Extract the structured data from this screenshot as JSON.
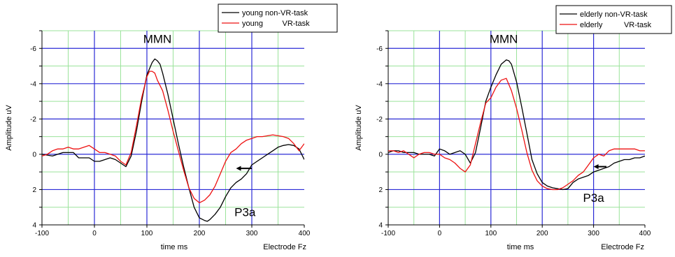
{
  "chart_data": [
    {
      "type": "line",
      "xlabel": "time ms",
      "ylabel": "Amplitude uV",
      "corner_label": "Electrode Fz",
      "xlim": [
        -100,
        400
      ],
      "ylim": [
        4,
        -7
      ],
      "y_inverted": true,
      "x_ticks": [
        -100,
        0,
        100,
        200,
        300,
        400
      ],
      "y_ticks": [
        -6,
        -4,
        -2,
        0,
        2,
        4
      ],
      "grid": true,
      "major_grid_color": "#2b2bd6",
      "minor_grid_color": "#9be39b",
      "legend_position": "top-right",
      "annotations": [
        {
          "text": "MMN",
          "x": 120,
          "y": -6.3
        },
        {
          "text": "P3a",
          "x": 287,
          "y": 3.5
        }
      ],
      "arrow": {
        "from": [
          300,
          0.8
        ],
        "to": [
          270,
          0.8
        ]
      },
      "series": [
        {
          "name": "young non-VR-task",
          "color": "#000000",
          "x": [
            -100,
            -80,
            -60,
            -50,
            -40,
            -30,
            -20,
            -10,
            0,
            10,
            20,
            30,
            40,
            50,
            60,
            70,
            80,
            90,
            100,
            110,
            115,
            120,
            125,
            130,
            140,
            150,
            160,
            170,
            180,
            190,
            200,
            210,
            215,
            220,
            230,
            240,
            250,
            260,
            270,
            280,
            290,
            300,
            310,
            320,
            330,
            340,
            350,
            360,
            370,
            380,
            390,
            400
          ],
          "y": [
            0,
            0.1,
            -0.1,
            -0.1,
            -0.1,
            0.2,
            0.2,
            0.2,
            0.4,
            0.4,
            0.3,
            0.2,
            0.3,
            0.5,
            0.7,
            0.1,
            -1.3,
            -3.0,
            -4.5,
            -5.2,
            -5.4,
            -5.3,
            -5.1,
            -4.6,
            -3.4,
            -2.0,
            -0.6,
            0.7,
            1.9,
            3.0,
            3.6,
            3.75,
            3.8,
            3.7,
            3.4,
            3.0,
            2.4,
            1.9,
            1.6,
            1.4,
            1.1,
            0.6,
            0.4,
            0.2,
            0,
            -0.2,
            -0.4,
            -0.5,
            -0.55,
            -0.5,
            -0.3,
            0.3
          ]
        },
        {
          "name": "young         VR-task",
          "color": "#ee1111",
          "x": [
            -100,
            -90,
            -80,
            -70,
            -60,
            -50,
            -40,
            -30,
            -20,
            -10,
            0,
            10,
            20,
            30,
            40,
            50,
            60,
            70,
            80,
            90,
            100,
            105,
            110,
            115,
            120,
            130,
            140,
            150,
            160,
            170,
            180,
            190,
            200,
            210,
            220,
            230,
            240,
            250,
            260,
            270,
            280,
            290,
            300,
            310,
            320,
            330,
            340,
            350,
            360,
            370,
            380,
            390,
            400
          ],
          "y": [
            0.1,
            0,
            -0.2,
            -0.3,
            -0.3,
            -0.4,
            -0.3,
            -0.3,
            -0.4,
            -0.5,
            -0.3,
            -0.1,
            -0.1,
            0,
            0.1,
            0.4,
            0.6,
            -0.1,
            -1.6,
            -3.2,
            -4.4,
            -4.7,
            -4.7,
            -4.6,
            -4.2,
            -3.6,
            -2.5,
            -1.3,
            -0.2,
            0.9,
            1.9,
            2.5,
            2.75,
            2.6,
            2.3,
            1.8,
            1.1,
            0.4,
            -0.1,
            -0.3,
            -0.6,
            -0.8,
            -0.9,
            -1.0,
            -1.0,
            -1.05,
            -1.1,
            -1.05,
            -1.0,
            -0.9,
            -0.6,
            -0.2,
            -0.6
          ]
        }
      ]
    },
    {
      "type": "line",
      "xlabel": "time ms",
      "ylabel": "Amplitude uV",
      "corner_label": "Electrode Fz",
      "xlim": [
        -100,
        400
      ],
      "ylim": [
        4,
        -7
      ],
      "y_inverted": true,
      "x_ticks": [
        -100,
        0,
        100,
        200,
        300,
        400
      ],
      "y_ticks": [
        -6,
        -4,
        -2,
        0,
        2,
        4
      ],
      "grid": true,
      "major_grid_color": "#2b2bd6",
      "minor_grid_color": "#9be39b",
      "legend_position": "top-right",
      "annotations": [
        {
          "text": "MMN",
          "x": 125,
          "y": -6.3
        },
        {
          "text": "P3a",
          "x": 300,
          "y": 2.7
        }
      ],
      "arrow": {
        "from": [
          325,
          0.7
        ],
        "to": [
          300,
          0.7
        ]
      },
      "series": [
        {
          "name": "elderly non-VR-task",
          "color": "#000000",
          "x": [
            -100,
            -90,
            -80,
            -70,
            -60,
            -50,
            -40,
            -30,
            -20,
            -10,
            0,
            10,
            20,
            30,
            40,
            50,
            60,
            70,
            80,
            90,
            100,
            110,
            120,
            130,
            135,
            140,
            150,
            160,
            170,
            180,
            190,
            200,
            210,
            220,
            230,
            240,
            250,
            260,
            270,
            280,
            290,
            300,
            310,
            320,
            330,
            340,
            350,
            360,
            370,
            380,
            390,
            400
          ],
          "y": [
            -0.1,
            -0.2,
            -0.2,
            -0.1,
            -0.1,
            -0.1,
            0,
            0,
            0,
            0.1,
            -0.3,
            -0.2,
            0,
            -0.1,
            -0.2,
            0,
            0.5,
            -0.1,
            -1.5,
            -3.0,
            -3.8,
            -4.5,
            -5.1,
            -5.35,
            -5.3,
            -5.1,
            -4.1,
            -2.7,
            -1.2,
            0.3,
            1.1,
            1.6,
            1.8,
            1.9,
            1.95,
            2.0,
            1.95,
            1.6,
            1.4,
            1.3,
            1.2,
            1.0,
            0.9,
            0.8,
            0.7,
            0.5,
            0.4,
            0.3,
            0.3,
            0.2,
            0.2,
            0.1
          ]
        },
        {
          "name": "elderly          VR-task",
          "color": "#ee1111",
          "x": [
            -100,
            -90,
            -80,
            -70,
            -60,
            -50,
            -40,
            -30,
            -20,
            -10,
            0,
            10,
            20,
            30,
            40,
            50,
            60,
            70,
            80,
            90,
            100,
            110,
            120,
            130,
            140,
            150,
            160,
            170,
            180,
            190,
            200,
            210,
            220,
            230,
            240,
            250,
            260,
            270,
            280,
            290,
            300,
            310,
            320,
            330,
            340,
            350,
            360,
            370,
            380,
            390,
            400
          ],
          "y": [
            -0.2,
            -0.2,
            -0.1,
            -0.2,
            0,
            0.2,
            0,
            -0.1,
            -0.1,
            0,
            0,
            0.2,
            0.3,
            0.5,
            0.8,
            1.0,
            0.6,
            -0.6,
            -1.8,
            -2.9,
            -3.2,
            -3.8,
            -4.2,
            -4.3,
            -3.6,
            -2.6,
            -1.4,
            -0.1,
            0.9,
            1.5,
            1.8,
            1.95,
            2.0,
            2.0,
            1.9,
            1.7,
            1.5,
            1.2,
            1.0,
            0.6,
            0.2,
            0,
            0.1,
            -0.2,
            -0.3,
            -0.3,
            -0.3,
            -0.3,
            -0.3,
            -0.2,
            -0.2
          ]
        }
      ]
    }
  ]
}
